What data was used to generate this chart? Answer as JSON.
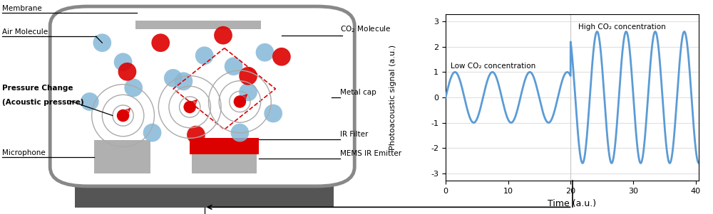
{
  "fig_width": 10.0,
  "fig_height": 3.01,
  "dpi": 100,
  "bg_color": "#ffffff",
  "line_color": "#5b9bd5",
  "line_width": 2.0,
  "low_amplitude": 1.0,
  "high_amplitude": 2.6,
  "freq_low": 0.155,
  "freq_high": 0.31,
  "transition_time": 20.0,
  "t_end": 40.5,
  "ylabel": "Photoacoustic signal (a.u.)",
  "xlabel": "Time (a.u.)",
  "yticks": [
    -3,
    -2,
    -1,
    0,
    1,
    2,
    3
  ],
  "xticks": [
    0,
    10,
    20,
    30,
    40
  ],
  "xlim": [
    0,
    40.5
  ],
  "ylim": [
    -3.3,
    3.3
  ],
  "low_label": "Low CO₂ concentration",
  "high_label": "High CO₂ concentration",
  "gray_dark": "#555555",
  "gray_mid": "#808080",
  "gray_light": "#b0b0b0",
  "gray_cap": "#888888",
  "red_color": "#dd0000",
  "blue_mol": "#85b8d8",
  "grid_color": "#e0e0e0"
}
